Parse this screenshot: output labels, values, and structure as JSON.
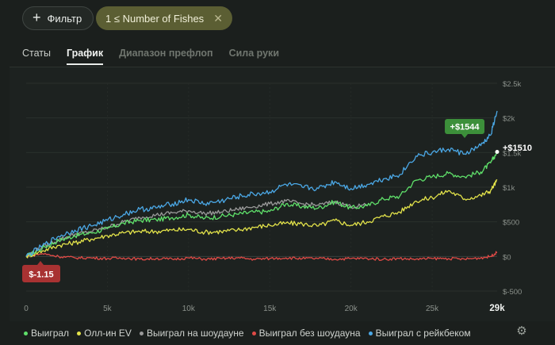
{
  "toolbar": {
    "filter_label": "Фильтр",
    "chip_label": "1 ≤ Number of Fishes"
  },
  "tabs": [
    "Статы",
    "График",
    "Диапазон префлоп",
    "Сила руки"
  ],
  "chart_data": {
    "type": "line",
    "xlabel": "",
    "ylabel": "",
    "xlim": [
      0,
      29000
    ],
    "ylim": [
      -500,
      2500
    ],
    "x_ticks": [
      0,
      5000,
      10000,
      15000,
      20000,
      25000
    ],
    "x_tick_labels": [
      "0",
      "5k",
      "10k",
      "15k",
      "20k",
      "25k"
    ],
    "x_end_label": "29k",
    "y_ticks": [
      -500,
      0,
      500,
      1000,
      1500,
      2000,
      2500
    ],
    "y_tick_labels": [
      "$-500",
      "$0",
      "$500",
      "$1k",
      "$1.5k",
      "$2k",
      "$2.5k"
    ],
    "series": [
      {
        "name": "Выиграл",
        "color": "#5fe06a",
        "x": [
          0,
          1000,
          2000,
          3000,
          4000,
          5000,
          6000,
          7000,
          8000,
          9000,
          10000,
          11000,
          12000,
          13000,
          14000,
          15000,
          16000,
          17000,
          18000,
          19000,
          20000,
          21000,
          22000,
          23000,
          24000,
          25000,
          26000,
          27000,
          28000,
          28600,
          29000
        ],
        "y": [
          0,
          120,
          230,
          300,
          340,
          400,
          480,
          520,
          530,
          560,
          600,
          550,
          580,
          610,
          640,
          650,
          760,
          720,
          700,
          790,
          700,
          730,
          830,
          870,
          1100,
          1150,
          1200,
          1150,
          1220,
          1350,
          1510
        ]
      },
      {
        "name": "Олл-ин EV",
        "color": "#e3e34a",
        "x": [
          0,
          1000,
          2000,
          3000,
          4000,
          5000,
          6000,
          7000,
          8000,
          9000,
          10000,
          11000,
          12000,
          13000,
          14000,
          15000,
          16000,
          17000,
          18000,
          19000,
          20000,
          21000,
          22000,
          23000,
          24000,
          25000,
          26000,
          27000,
          28000,
          28600,
          29000
        ],
        "y": [
          0,
          80,
          160,
          200,
          250,
          300,
          340,
          360,
          360,
          380,
          390,
          350,
          360,
          380,
          420,
          450,
          480,
          470,
          440,
          520,
          450,
          500,
          580,
          640,
          800,
          850,
          950,
          830,
          880,
          950,
          1100
        ]
      },
      {
        "name": "Выиграл на шоудауне",
        "color": "#9a9a9a",
        "x": [
          0,
          1000,
          2000,
          3000,
          4000,
          5000,
          6000,
          7000,
          8000,
          9000,
          10000,
          11000,
          12000,
          13000,
          14000,
          15000,
          16000,
          17000,
          18000,
          19000,
          20000,
          21000
        ],
        "y": [
          0,
          140,
          240,
          320,
          360,
          420,
          500,
          560,
          600,
          630,
          660,
          620,
          640,
          680,
          720,
          760,
          800,
          760,
          740,
          790,
          720,
          740
        ]
      },
      {
        "name": "Выиграл без шоудауна",
        "color": "#e04a46",
        "x": [
          0,
          1000,
          2000,
          3000,
          4000,
          5000,
          6000,
          7000,
          8000,
          9000,
          10000,
          11000,
          12000,
          13000,
          14000,
          15000,
          16000,
          17000,
          18000,
          19000,
          20000,
          21000,
          22000,
          23000,
          24000,
          25000,
          26000,
          27000,
          28000,
          28600,
          29000
        ],
        "y": [
          0,
          40,
          0,
          -20,
          -20,
          -30,
          -20,
          -40,
          -30,
          -40,
          -20,
          -40,
          -30,
          -20,
          -40,
          -30,
          -20,
          -30,
          -30,
          -40,
          -30,
          -30,
          -40,
          -30,
          -40,
          -30,
          -30,
          -40,
          -20,
          0,
          60
        ]
      },
      {
        "name": "Выиграл с рейкбеком",
        "color": "#4ba8e6",
        "x": [
          0,
          1000,
          2000,
          3000,
          4000,
          5000,
          6000,
          7000,
          8000,
          9000,
          10000,
          11000,
          12000,
          13000,
          14000,
          15000,
          16000,
          17000,
          18000,
          19000,
          20000,
          21000,
          22000,
          23000,
          24000,
          25000,
          26000,
          27000,
          28000,
          28600,
          29000
        ],
        "y": [
          0,
          150,
          290,
          380,
          440,
          520,
          610,
          680,
          700,
          760,
          820,
          760,
          800,
          860,
          900,
          930,
          1040,
          1000,
          980,
          1080,
          980,
          1040,
          1120,
          1180,
          1450,
          1500,
          1550,
          1480,
          1600,
          1750,
          2100
        ]
      }
    ],
    "annotations": {
      "start_value": "$-1.15",
      "green_label": "+$1544",
      "white_label": "+$1510"
    }
  },
  "legend_labels": [
    "Выиграл",
    "Олл-ин EV",
    "Выиграл на шоудауне",
    "Выиграл без шоудауна",
    "Выиграл с рейкбеком"
  ],
  "colors": {
    "accent_green": "#3c8f3a",
    "accent_red": "#a83232",
    "chip_bg": "#5b5e33"
  }
}
